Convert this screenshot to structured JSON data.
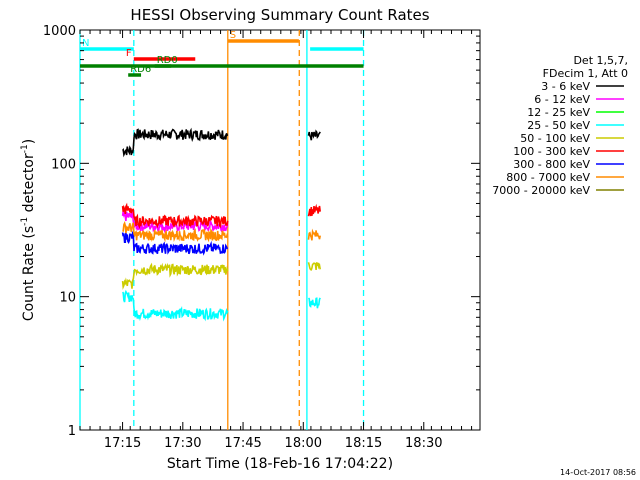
{
  "chart_data": {
    "type": "line",
    "title": "HESSI Observing Summary Count Rates",
    "xlabel": "Start Time (18-Feb-16 17:04:22)",
    "ylabel": "Count Rate (s",
    "ylabel_sup": "-1",
    "ylabel_tail": " detector",
    "ylabel_sup2": "-1",
    "ylabel_end": ")",
    "yscale": "log",
    "ylim": [
      1,
      1000
    ],
    "xlim_minutes": [
      0,
      99.6
    ],
    "x_ticks": [
      {
        "label": "17:15",
        "minute": 10.6
      },
      {
        "label": "17:30",
        "minute": 25.6
      },
      {
        "label": "17:45",
        "minute": 40.6
      },
      {
        "label": "18:00",
        "minute": 55.6
      },
      {
        "label": "18:15",
        "minute": 70.6
      },
      {
        "label": "18:30",
        "minute": 85.6
      }
    ],
    "y_ticks": [
      {
        "label": "1",
        "value": 1
      },
      {
        "label": "10",
        "value": 10
      },
      {
        "label": "100",
        "value": 100
      },
      {
        "label": "1000",
        "value": 1000
      }
    ],
    "legend_header": [
      "Det 1,5,7,",
      "FDecim 1, Att 0"
    ],
    "series": [
      {
        "name": "3 - 6 keV",
        "color": "#000000",
        "levels": [
          125,
          165,
          160
        ]
      },
      {
        "name": "6 - 12 keV",
        "color": "#ff00ff",
        "levels": [
          40,
          34,
          0
        ]
      },
      {
        "name": "12 - 25 keV",
        "color": "#00ff00",
        "levels": [
          0,
          0,
          0
        ]
      },
      {
        "name": "25 - 50 keV",
        "color": "#00ffff",
        "levels": [
          10,
          7.5,
          9
        ]
      },
      {
        "name": "50 - 100 keV",
        "color": "#cccc00",
        "levels": [
          12.5,
          16,
          17
        ]
      },
      {
        "name": "100 - 300 keV",
        "color": "#ff0000",
        "levels": [
          45,
          37,
          44
        ]
      },
      {
        "name": "300 - 800 keV",
        "color": "#0000ff",
        "levels": [
          28,
          23,
          0
        ]
      },
      {
        "name": "800 - 7000 keV",
        "color": "#ff8c00",
        "levels": [
          33,
          29,
          29
        ]
      },
      {
        "name": "7000 - 20000 keV",
        "color": "#808000",
        "levels": [
          0,
          0,
          0
        ]
      }
    ],
    "data_intervals_minutes": [
      [
        10.6,
        36.8
      ],
      [
        56.9,
        59.8
      ]
    ],
    "annotation_lines": [
      {
        "label": "N",
        "color": "#00ffff",
        "segments": [
          [
            0,
            13.4
          ],
          [
            57.3,
            70.6
          ]
        ]
      },
      {
        "label": "F",
        "color": "#ff0000",
        "segments": [
          [
            13.4,
            28.7
          ]
        ]
      },
      {
        "label": "RD0",
        "color": "#008000",
        "segments": [
          [
            18.6,
            22.7
          ]
        ]
      },
      {
        "label": "RD6",
        "color": "#008000",
        "segments": [
          [
            12.0,
            15.2
          ]
        ]
      },
      {
        "label": "S",
        "color": "#ff8c00",
        "segments": [
          [
            36.8,
            54.5
          ]
        ]
      },
      {
        "label": "",
        "color": "#008000",
        "segments": [
          [
            0,
            70.6
          ]
        ]
      }
    ],
    "vertical_markers": [
      {
        "minute": 0.0,
        "color": "#00ffff",
        "style": "solid"
      },
      {
        "minute": 13.4,
        "color": "#00ffff",
        "style": "dashed"
      },
      {
        "minute": 36.8,
        "color": "#ff8c00",
        "style": "solid"
      },
      {
        "minute": 54.6,
        "color": "#ff8c00",
        "style": "dashed"
      },
      {
        "minute": 56.5,
        "color": "#00ffff",
        "style": "solid"
      },
      {
        "minute": 70.6,
        "color": "#00ffff",
        "style": "dashed"
      }
    ]
  },
  "footer": {
    "timestamp": "14-Oct-2017 08:56"
  }
}
